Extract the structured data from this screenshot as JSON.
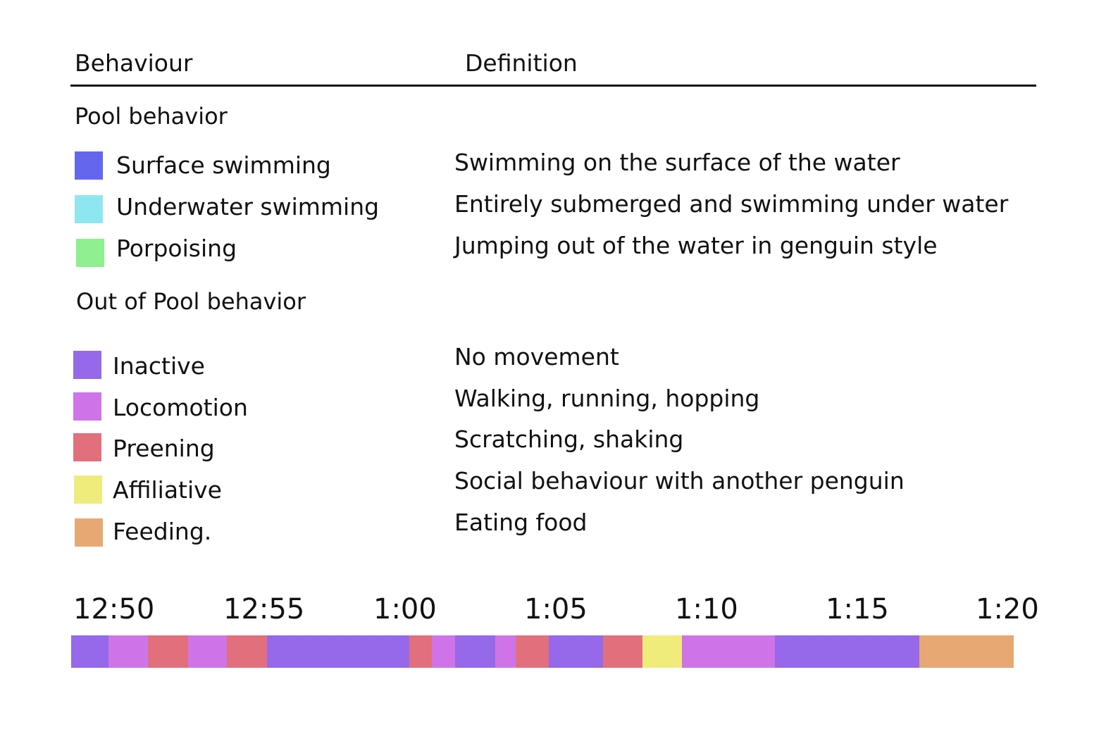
{
  "headers": {
    "behaviour": "Behaviour",
    "definition": "Definition"
  },
  "groups": {
    "pool": "Pool behavior",
    "out_of_pool": "Out of Pool behavior"
  },
  "pool_behaviours": [
    {
      "label": "Surface swimming",
      "definition": "Swimming on the surface of the water",
      "color": "#6467EE"
    },
    {
      "label": "Underwater swimming",
      "definition": "Entirely submerged and swimming under water",
      "color": "#8EE7F0"
    },
    {
      "label": "Porpoising",
      "definition": "Jumping out of the water in genguin style",
      "color": "#8EF08E"
    }
  ],
  "out_behaviours": [
    {
      "label": "Inactive",
      "definition": "No movement",
      "color": "#9569E9"
    },
    {
      "label": "Locomotion",
      "definition": "Walking, running, hopping",
      "color": "#CF74E8"
    },
    {
      "label": "Preening",
      "definition": "Scratching, shaking",
      "color": "#E2707C"
    },
    {
      "label": "Affiliative",
      "definition": "Social behaviour with another penguin",
      "color": "#F0EC7C"
    },
    {
      "label": "Feeding.",
      "definition": "Eating food",
      "color": "#E8A873"
    }
  ],
  "timeline": {
    "ticks": [
      "12:50",
      "12:55",
      "1:00",
      "1:05",
      "1:10",
      "1:15",
      "1:20"
    ],
    "start_minutes": 0,
    "end_minutes": 30,
    "segments": [
      {
        "behaviour": "Inactive",
        "start": 0.0,
        "end": 1.17
      },
      {
        "behaviour": "Locomotion",
        "start": 1.17,
        "end": 2.41
      },
      {
        "behaviour": "Preening",
        "start": 2.41,
        "end": 3.65
      },
      {
        "behaviour": "Locomotion",
        "start": 3.65,
        "end": 4.88
      },
      {
        "behaviour": "Preening",
        "start": 4.88,
        "end": 6.12
      },
      {
        "behaviour": "Inactive",
        "start": 6.12,
        "end": 10.59
      },
      {
        "behaviour": "Preening",
        "start": 10.59,
        "end": 11.28
      },
      {
        "behaviour": "Locomotion",
        "start": 11.28,
        "end": 12.02
      },
      {
        "behaviour": "Inactive",
        "start": 12.02,
        "end": 13.28
      },
      {
        "behaviour": "Locomotion",
        "start": 13.28,
        "end": 13.91
      },
      {
        "behaviour": "Preening",
        "start": 13.91,
        "end": 14.95
      },
      {
        "behaviour": "Inactive",
        "start": 14.95,
        "end": 16.65
      },
      {
        "behaviour": "Preening",
        "start": 16.65,
        "end": 17.88
      },
      {
        "behaviour": "Affiliative",
        "start": 17.88,
        "end": 19.12
      },
      {
        "behaviour": "Locomotion",
        "start": 19.12,
        "end": 22.02
      },
      {
        "behaviour": "Inactive",
        "start": 22.02,
        "end": 26.54
      },
      {
        "behaviour": "Feeding.",
        "start": 26.54,
        "end": 29.49
      }
    ]
  }
}
